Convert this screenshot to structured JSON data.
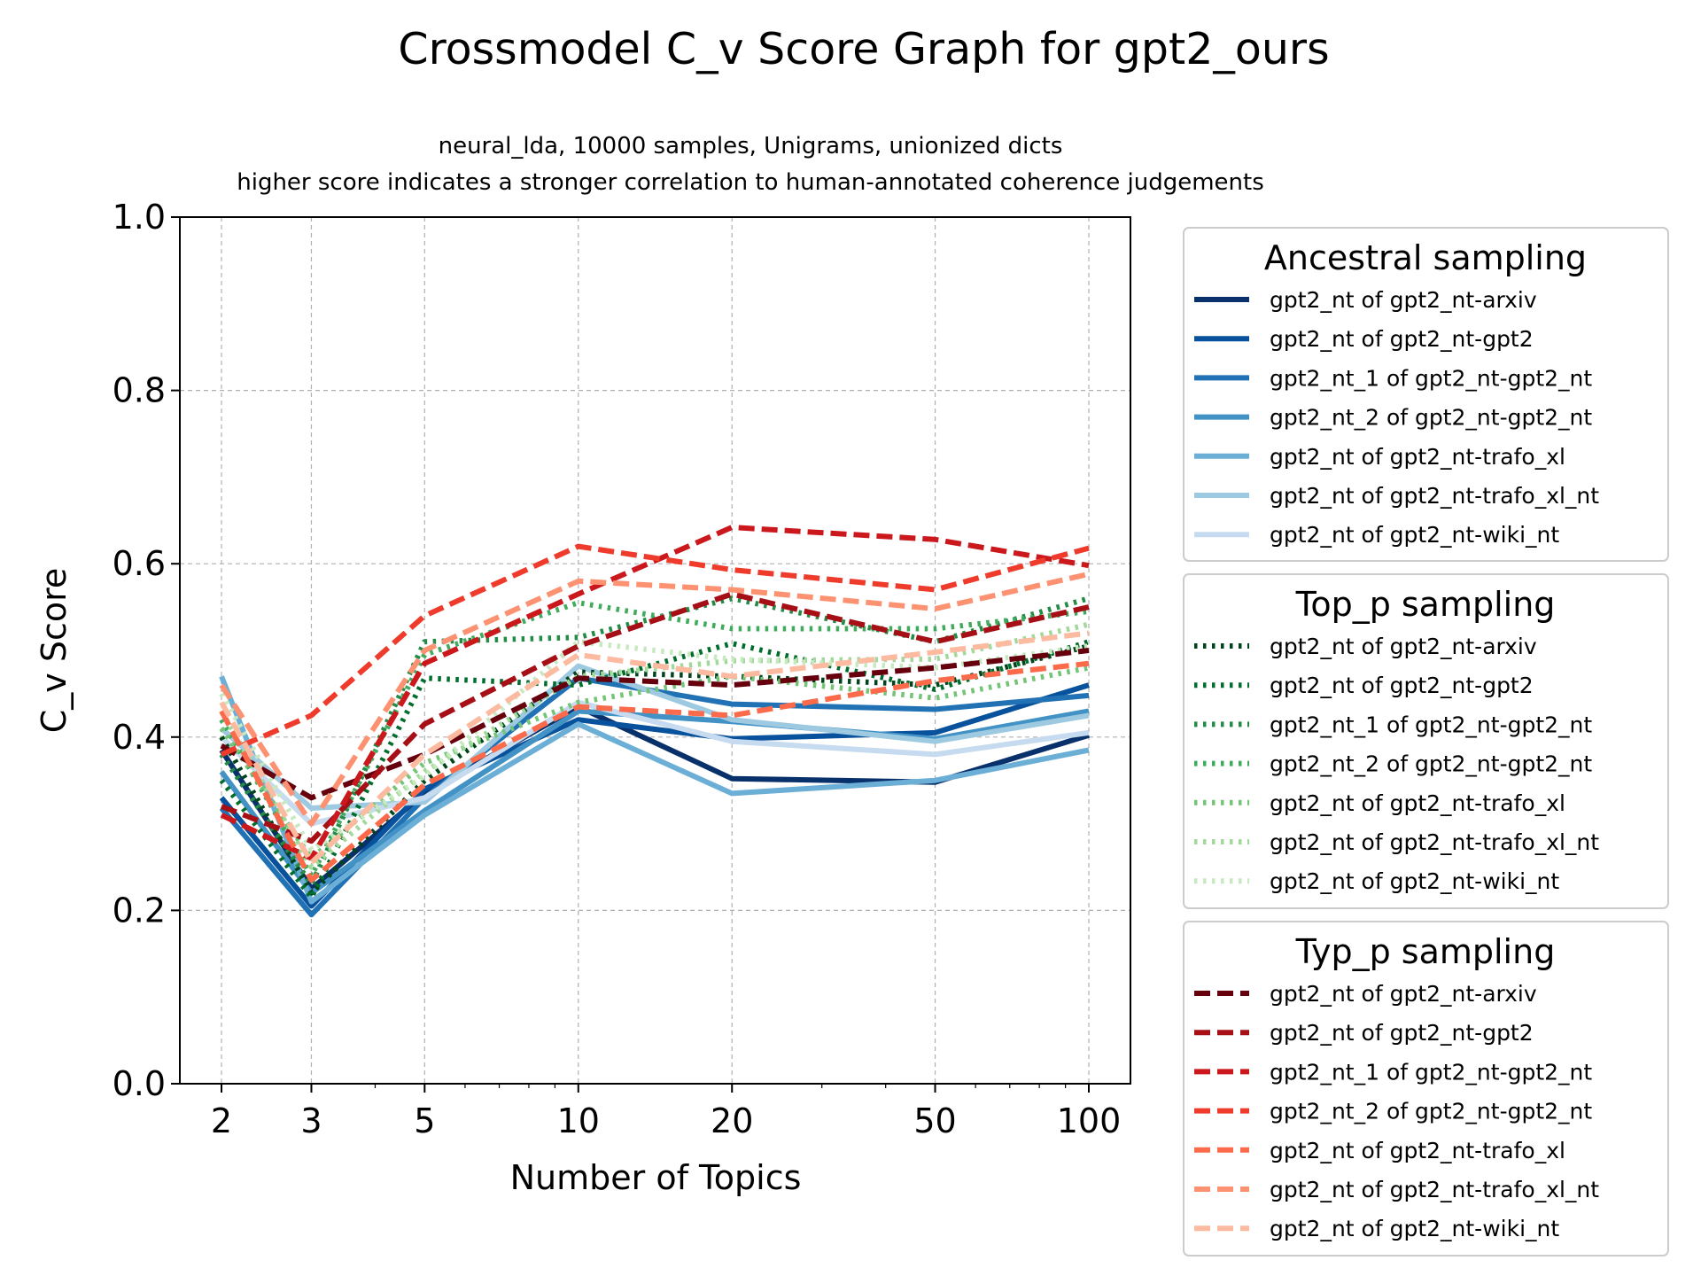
{
  "chart_data": {
    "type": "line",
    "title": "Crossmodel C_v Score Graph for gpt2_ours",
    "subtitle_line1": "neural_lda, 10000 samples, Unigrams, unionized dicts",
    "subtitle_line2": "higher score indicates a stronger correlation to human-annotated coherence judgements",
    "xlabel": "Number of Topics",
    "ylabel": "C_v Score",
    "x_scale": "log",
    "x": [
      2,
      3,
      5,
      10,
      20,
      50,
      100
    ],
    "x_tick_labels": [
      "2",
      "3",
      "5",
      "10",
      "20",
      "50",
      "100"
    ],
    "ylim": [
      0.0,
      1.0
    ],
    "y_ticks": [
      0.0,
      0.2,
      0.4,
      0.6,
      0.8,
      1.0
    ],
    "y_tick_labels": [
      "0.0",
      "0.2",
      "0.4",
      "0.6",
      "0.8",
      "1.0"
    ],
    "grid": true,
    "legend_placement": "right, outside plot",
    "groups": [
      {
        "title": "Ancestral sampling",
        "style": "solid",
        "series": [
          {
            "name": "gpt2_nt of gpt2_nt-arxiv",
            "color": "#08306b",
            "values": [
              0.385,
              0.225,
              0.335,
              0.435,
              0.352,
              0.348,
              0.402
            ]
          },
          {
            "name": "gpt2_nt of gpt2_nt-gpt2",
            "color": "#08519c",
            "values": [
              0.33,
              0.205,
              0.34,
              0.42,
              0.398,
              0.405,
              0.46
            ]
          },
          {
            "name": "gpt2_nt_1 of gpt2_nt-gpt2_nt",
            "color": "#2171b5",
            "values": [
              0.318,
              0.195,
              0.33,
              0.468,
              0.438,
              0.432,
              0.448
            ]
          },
          {
            "name": "gpt2_nt_2 of gpt2_nt-gpt2_nt",
            "color": "#4292c6",
            "values": [
              0.36,
              0.22,
              0.315,
              0.43,
              0.418,
              0.398,
              0.43
            ]
          },
          {
            "name": "gpt2_nt of gpt2_nt-trafo_xl",
            "color": "#6baed6",
            "values": [
              0.47,
              0.21,
              0.31,
              0.415,
              0.335,
              0.35,
              0.385
            ]
          },
          {
            "name": "gpt2_nt of gpt2_nt-trafo_xl_nt",
            "color": "#9ecae1",
            "values": [
              0.41,
              0.318,
              0.325,
              0.482,
              0.42,
              0.395,
              0.425
            ]
          },
          {
            "name": "gpt2_nt of gpt2_nt-wiki_nt",
            "color": "#c6dbef",
            "values": [
              0.4,
              0.3,
              0.33,
              0.44,
              0.395,
              0.38,
              0.405
            ]
          }
        ]
      },
      {
        "title": "Top_p sampling",
        "style": "dotted",
        "series": [
          {
            "name": "gpt2_nt of gpt2_nt-arxiv",
            "color": "#00441b",
            "values": [
              0.4,
              0.22,
              0.35,
              0.475,
              0.47,
              0.46,
              0.505
            ]
          },
          {
            "name": "gpt2_nt of gpt2_nt-gpt2",
            "color": "#006d2c",
            "values": [
              0.35,
              0.215,
              0.468,
              0.46,
              0.508,
              0.455,
              0.51
            ]
          },
          {
            "name": "gpt2_nt_1 of gpt2_nt-gpt2_nt",
            "color": "#238b45",
            "values": [
              0.38,
              0.23,
              0.51,
              0.515,
              0.56,
              0.51,
              0.56
            ]
          },
          {
            "name": "gpt2_nt_2 of gpt2_nt-gpt2_nt",
            "color": "#41ab5d",
            "values": [
              0.42,
              0.24,
              0.495,
              0.555,
              0.525,
              0.525,
              0.545
            ]
          },
          {
            "name": "gpt2_nt of gpt2_nt-trafo_xl",
            "color": "#74c476",
            "values": [
              0.41,
              0.26,
              0.37,
              0.44,
              0.47,
              0.445,
              0.48
            ]
          },
          {
            "name": "gpt2_nt of gpt2_nt-trafo_xl_nt",
            "color": "#a1d99b",
            "values": [
              0.43,
              0.25,
              0.36,
              0.47,
              0.488,
              0.49,
              0.53
            ]
          },
          {
            "name": "gpt2_nt of gpt2_nt-wiki_nt",
            "color": "#c7e9c0",
            "values": [
              0.45,
              0.27,
              0.355,
              0.51,
              0.49,
              0.48,
              0.505
            ]
          }
        ]
      },
      {
        "title": "Typ_p sampling",
        "style": "dashed",
        "series": [
          {
            "name": "gpt2_nt of gpt2_nt-arxiv",
            "color": "#67000d",
            "values": [
              0.39,
              0.33,
              0.38,
              0.468,
              0.46,
              0.48,
              0.5
            ]
          },
          {
            "name": "gpt2_nt of gpt2_nt-gpt2",
            "color": "#a50f15",
            "values": [
              0.32,
              0.28,
              0.415,
              0.505,
              0.565,
              0.51,
              0.55
            ]
          },
          {
            "name": "gpt2_nt_1 of gpt2_nt-gpt2_nt",
            "color": "#cb181d",
            "values": [
              0.31,
              0.26,
              0.485,
              0.565,
              0.642,
              0.628,
              0.598
            ]
          },
          {
            "name": "gpt2_nt_2 of gpt2_nt-gpt2_nt",
            "color": "#ef3b2c",
            "values": [
              0.38,
              0.425,
              0.54,
              0.62,
              0.593,
              0.57,
              0.618
            ]
          },
          {
            "name": "gpt2_nt of gpt2_nt-trafo_xl",
            "color": "#fb6a4a",
            "values": [
              0.43,
              0.235,
              0.345,
              0.435,
              0.425,
              0.465,
              0.485
            ]
          },
          {
            "name": "gpt2_nt of gpt2_nt-trafo_xl_nt",
            "color": "#fc9272",
            "values": [
              0.46,
              0.3,
              0.5,
              0.58,
              0.57,
              0.548,
              0.588
            ]
          },
          {
            "name": "gpt2_nt of gpt2_nt-wiki_nt",
            "color": "#fcbba1",
            "values": [
              0.44,
              0.255,
              0.38,
              0.495,
              0.47,
              0.498,
              0.52
            ]
          }
        ]
      }
    ]
  }
}
